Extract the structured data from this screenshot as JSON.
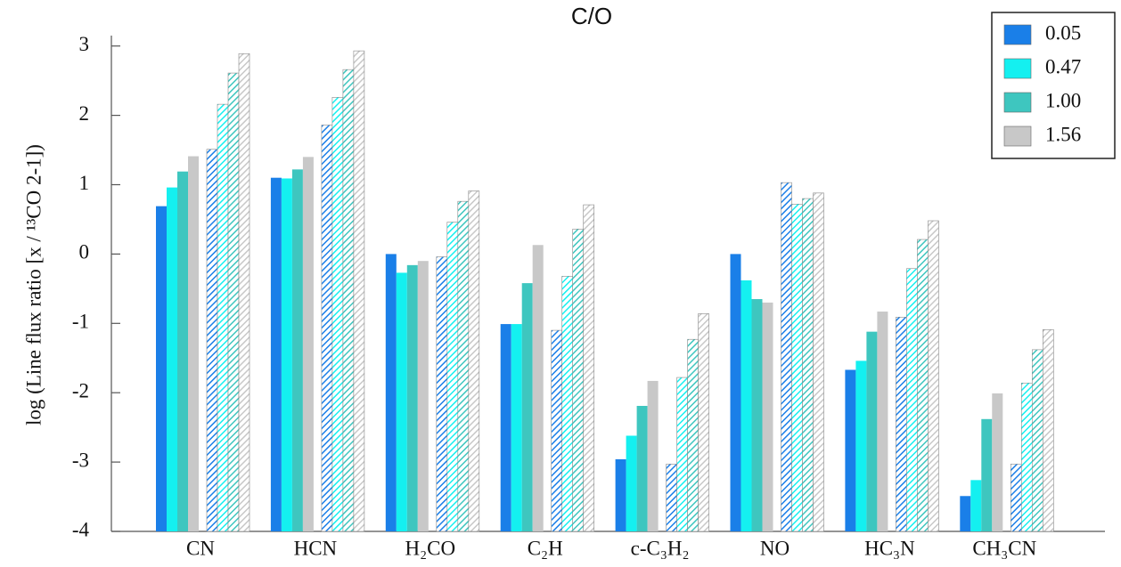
{
  "chart_data": {
    "type": "bar",
    "title": "C/O",
    "y_label": "log (Line flux ratio [x / ¹³CO 2-1])",
    "categories": [
      "CN",
      "HCN",
      "H₂CO",
      "C₂H",
      "c-C₃H₂",
      "NO",
      "HC₃N",
      "CH₃CN"
    ],
    "series": [
      {
        "name": "0.05",
        "color": "#1a7fe8",
        "values": [
          0.69,
          1.1,
          0.0,
          -1.01,
          -2.96,
          0.0,
          -1.67,
          -3.49
        ]
      },
      {
        "name": "0.47",
        "color": "#14f0f0",
        "values": [
          0.96,
          1.09,
          -0.27,
          -1.01,
          -2.62,
          -0.38,
          -1.54,
          -3.26
        ]
      },
      {
        "name": "1.00",
        "color": "#3ec6bf",
        "values": [
          1.19,
          1.22,
          -0.16,
          -0.42,
          -2.19,
          -0.65,
          -1.12,
          -2.38
        ]
      },
      {
        "name": "1.56",
        "color": "#c8c8c8",
        "values": [
          1.41,
          1.4,
          -0.1,
          0.13,
          -1.83,
          -0.7,
          -0.83,
          -2.01
        ]
      },
      {
        "color": "#1a7fe8",
        "hatch": true,
        "values": [
          1.51,
          1.86,
          -0.04,
          -1.1,
          -3.03,
          1.03,
          -0.91,
          -3.03
        ]
      },
      {
        "color": "#14f0f0",
        "hatch": true,
        "values": [
          2.16,
          2.26,
          0.46,
          -0.32,
          -1.78,
          0.72,
          -0.21,
          -1.86
        ]
      },
      {
        "color": "#3ec6bf",
        "hatch": true,
        "values": [
          2.61,
          2.66,
          0.76,
          0.36,
          -1.23,
          0.8,
          0.21,
          -1.38
        ]
      },
      {
        "color": "#c8c8c8",
        "hatch": true,
        "values": [
          2.89,
          2.93,
          0.91,
          0.71,
          -0.86,
          0.88,
          0.48,
          -1.09
        ]
      }
    ],
    "ylim": [
      -4,
      3.15
    ],
    "yticks": [
      -4,
      -3,
      -2,
      -1,
      0,
      1,
      2,
      3
    ],
    "grid": false,
    "legend": "top-right"
  }
}
